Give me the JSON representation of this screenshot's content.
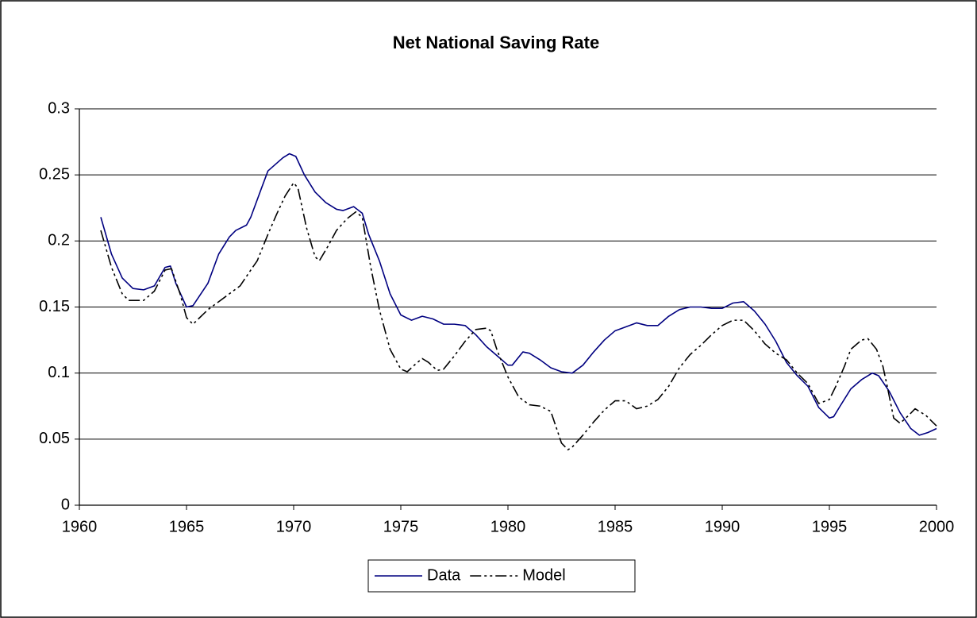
{
  "chart_data": {
    "type": "line",
    "title": "Net National Saving Rate",
    "xlim": [
      1960,
      2000
    ],
    "xticks": [
      1960,
      1965,
      1970,
      1975,
      1980,
      1985,
      1990,
      1995,
      2000
    ],
    "ylim": [
      0,
      0.3
    ],
    "yticks": [
      0,
      0.05,
      0.1,
      0.15,
      0.2,
      0.25,
      0.3
    ],
    "grid": true,
    "legend": "bottom",
    "series": [
      {
        "name": "Data",
        "color": "#000080",
        "line_style": "solid",
        "x": [
          1961.0,
          1961.5,
          1962.0,
          1962.5,
          1963.0,
          1963.5,
          1964.0,
          1964.25,
          1964.5,
          1965.0,
          1965.3,
          1966.0,
          1966.5,
          1967.0,
          1967.3,
          1967.8,
          1968.0,
          1968.5,
          1968.8,
          1969.5,
          1969.8,
          1970.1,
          1970.5,
          1971.0,
          1971.5,
          1972.0,
          1972.3,
          1972.8,
          1973.2,
          1973.5,
          1974.0,
          1974.5,
          1975.0,
          1975.5,
          1976.0,
          1976.5,
          1977.0,
          1977.5,
          1978.0,
          1978.5,
          1979.0,
          1979.5,
          1980.0,
          1980.2,
          1980.7,
          1981.0,
          1981.5,
          1982.0,
          1982.5,
          1983.0,
          1983.5,
          1984.0,
          1984.5,
          1985.0,
          1985.5,
          1986.0,
          1986.5,
          1987.0,
          1987.5,
          1988.0,
          1988.5,
          1989.0,
          1989.5,
          1990.0,
          1990.5,
          1991.0,
          1991.5,
          1992.0,
          1992.5,
          1993.0,
          1993.5,
          1994.0,
          1994.5,
          1995.0,
          1995.2,
          1995.5,
          1996.0,
          1996.5,
          1997.0,
          1997.3,
          1997.8,
          1998.3,
          1998.8,
          1999.2,
          1999.6,
          2000.0
        ],
        "values": [
          0.218,
          0.19,
          0.172,
          0.164,
          0.163,
          0.166,
          0.18,
          0.181,
          0.168,
          0.15,
          0.151,
          0.168,
          0.19,
          0.203,
          0.208,
          0.212,
          0.218,
          0.24,
          0.253,
          0.263,
          0.266,
          0.264,
          0.25,
          0.237,
          0.229,
          0.224,
          0.223,
          0.226,
          0.221,
          0.205,
          0.185,
          0.16,
          0.144,
          0.14,
          0.143,
          0.141,
          0.137,
          0.137,
          0.136,
          0.129,
          0.12,
          0.113,
          0.106,
          0.106,
          0.116,
          0.115,
          0.11,
          0.104,
          0.101,
          0.1,
          0.106,
          0.116,
          0.125,
          0.132,
          0.135,
          0.138,
          0.136,
          0.136,
          0.143,
          0.148,
          0.15,
          0.15,
          0.149,
          0.149,
          0.153,
          0.154,
          0.147,
          0.137,
          0.124,
          0.108,
          0.098,
          0.09,
          0.074,
          0.066,
          0.067,
          0.075,
          0.088,
          0.095,
          0.1,
          0.098,
          0.086,
          0.07,
          0.058,
          0.053,
          0.055,
          0.058
        ]
      },
      {
        "name": "Model",
        "color": "#000000",
        "line_style": "dash-dot-dot",
        "x": [
          1961.0,
          1961.5,
          1962.0,
          1962.3,
          1963.0,
          1963.5,
          1964.0,
          1964.3,
          1964.7,
          1965.0,
          1965.3,
          1966.0,
          1966.5,
          1967.0,
          1967.5,
          1968.0,
          1968.3,
          1968.8,
          1969.2,
          1969.6,
          1970.0,
          1970.2,
          1970.6,
          1971.0,
          1971.2,
          1971.6,
          1972.0,
          1972.5,
          1972.9,
          1973.2,
          1973.6,
          1974.0,
          1974.5,
          1975.0,
          1975.3,
          1975.7,
          1976.0,
          1976.3,
          1976.7,
          1977.0,
          1977.5,
          1978.0,
          1978.5,
          1979.0,
          1979.2,
          1979.5,
          1980.0,
          1980.5,
          1981.0,
          1981.5,
          1982.0,
          1982.5,
          1982.8,
          1983.0,
          1983.5,
          1984.0,
          1984.5,
          1985.0,
          1985.5,
          1986.0,
          1986.5,
          1987.0,
          1987.5,
          1988.0,
          1988.5,
          1989.0,
          1989.5,
          1990.0,
          1990.5,
          1991.0,
          1991.5,
          1992.0,
          1992.5,
          1993.0,
          1993.5,
          1994.0,
          1994.5,
          1995.0,
          1995.3,
          1995.7,
          1996.0,
          1996.5,
          1996.8,
          1997.2,
          1997.5,
          1997.7,
          1998.0,
          1998.3,
          1998.7,
          1999.0,
          1999.5,
          2000.0
        ],
        "values": [
          0.208,
          0.18,
          0.16,
          0.155,
          0.155,
          0.162,
          0.178,
          0.179,
          0.16,
          0.142,
          0.137,
          0.148,
          0.154,
          0.16,
          0.166,
          0.178,
          0.185,
          0.205,
          0.22,
          0.234,
          0.244,
          0.24,
          0.21,
          0.188,
          0.185,
          0.196,
          0.208,
          0.217,
          0.222,
          0.218,
          0.18,
          0.148,
          0.118,
          0.103,
          0.101,
          0.107,
          0.111,
          0.108,
          0.102,
          0.103,
          0.113,
          0.124,
          0.133,
          0.134,
          0.132,
          0.117,
          0.097,
          0.082,
          0.076,
          0.075,
          0.071,
          0.047,
          0.042,
          0.044,
          0.053,
          0.063,
          0.072,
          0.079,
          0.079,
          0.073,
          0.075,
          0.08,
          0.09,
          0.104,
          0.114,
          0.121,
          0.129,
          0.136,
          0.14,
          0.14,
          0.132,
          0.122,
          0.115,
          0.11,
          0.1,
          0.092,
          0.077,
          0.08,
          0.09,
          0.105,
          0.118,
          0.125,
          0.126,
          0.118,
          0.105,
          0.09,
          0.066,
          0.062,
          0.068,
          0.073,
          0.068,
          0.06
        ]
      }
    ]
  }
}
